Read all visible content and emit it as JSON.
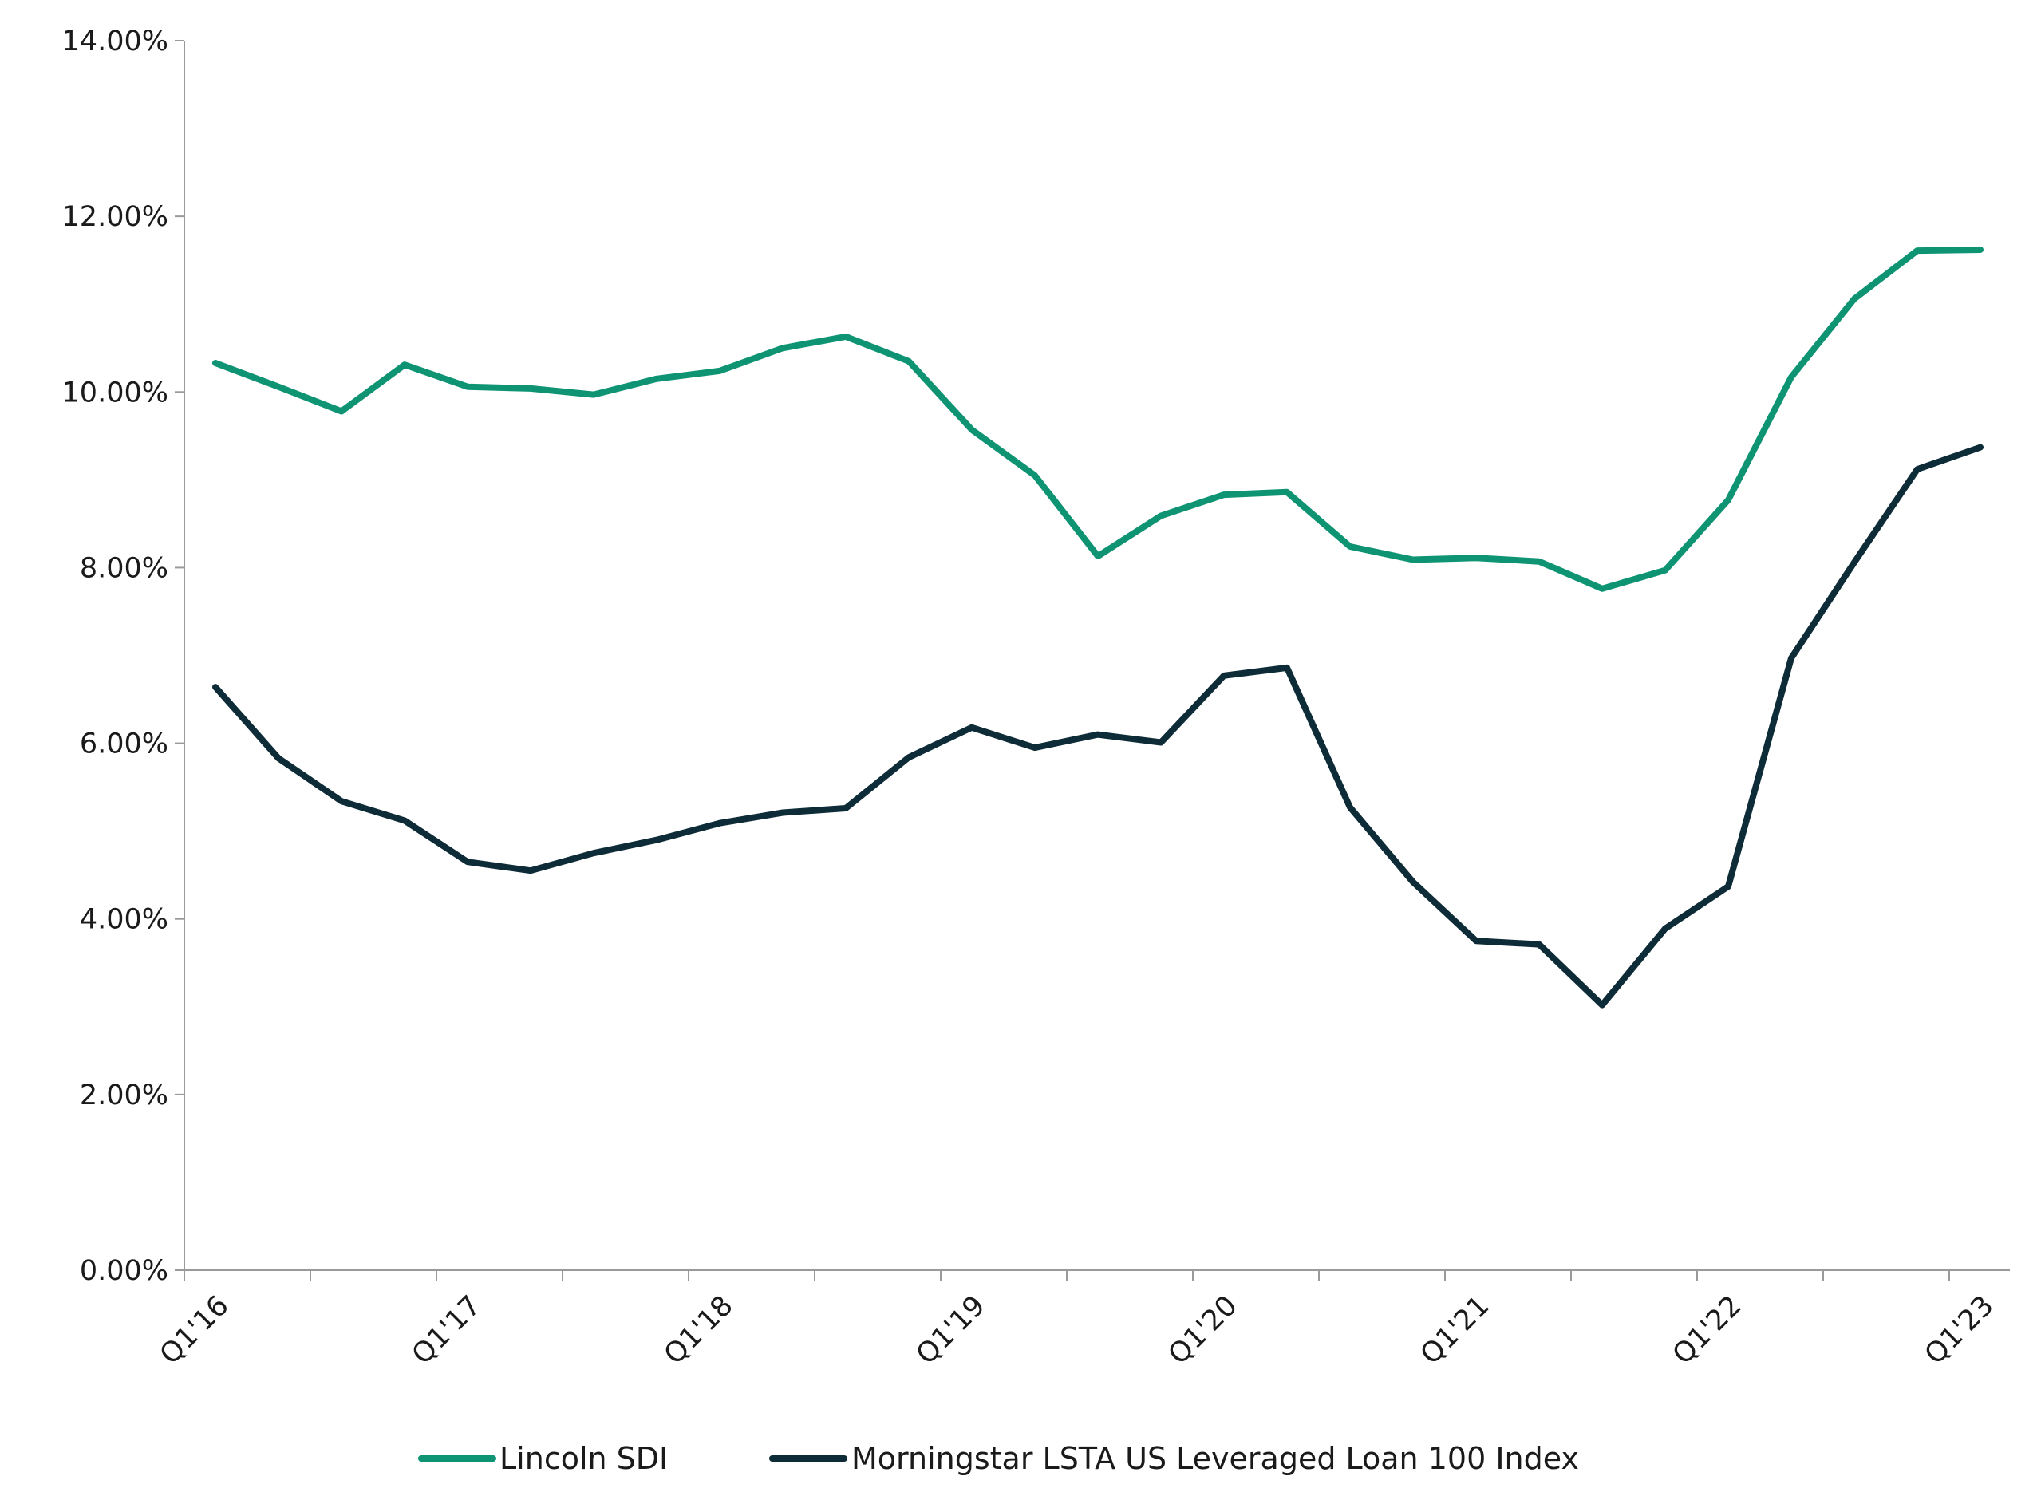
{
  "chart_data": {
    "type": "line",
    "title": "",
    "xlabel": "",
    "ylabel": "",
    "ylim": [
      0,
      14
    ],
    "y_ticks": [
      "0.00%",
      "2.00%",
      "4.00%",
      "6.00%",
      "8.00%",
      "10.00%",
      "12.00%",
      "14.00%"
    ],
    "y_tick_values": [
      0,
      2,
      4,
      6,
      8,
      10,
      12,
      14
    ],
    "x_tick_labels": [
      "Q1'16",
      "Q1'17",
      "Q1'18",
      "Q1'19",
      "Q1'20",
      "Q1'21",
      "Q1'22",
      "Q1'23"
    ],
    "x_tick_quarters": [
      0,
      4,
      8,
      12,
      16,
      20,
      24,
      28
    ],
    "x_quarter_count": 29,
    "grid": false,
    "legend_position": "bottom",
    "series": [
      {
        "name": "Lincoln SDI",
        "color": "#0E9473",
        "values": [
          10.33,
          10.06,
          9.78,
          10.31,
          10.06,
          10.04,
          9.97,
          10.15,
          10.24,
          10.5,
          10.63,
          10.35,
          9.57,
          9.05,
          8.13,
          8.59,
          8.83,
          8.86,
          8.24,
          8.09,
          8.11,
          8.07,
          7.76,
          7.97,
          8.77,
          10.17,
          11.06,
          11.61,
          11.62
        ]
      },
      {
        "name": "Morningstar LSTA US Leveraged Loan 100 Index",
        "color": "#0D2C38",
        "values": [
          6.64,
          5.83,
          5.34,
          5.12,
          4.65,
          4.55,
          4.75,
          4.9,
          5.09,
          5.21,
          5.26,
          5.84,
          6.18,
          5.95,
          6.1,
          6.01,
          6.77,
          6.86,
          5.27,
          4.42,
          3.75,
          3.71,
          3.02,
          3.89,
          4.37,
          6.97,
          8.06,
          9.12,
          9.37
        ]
      }
    ]
  }
}
